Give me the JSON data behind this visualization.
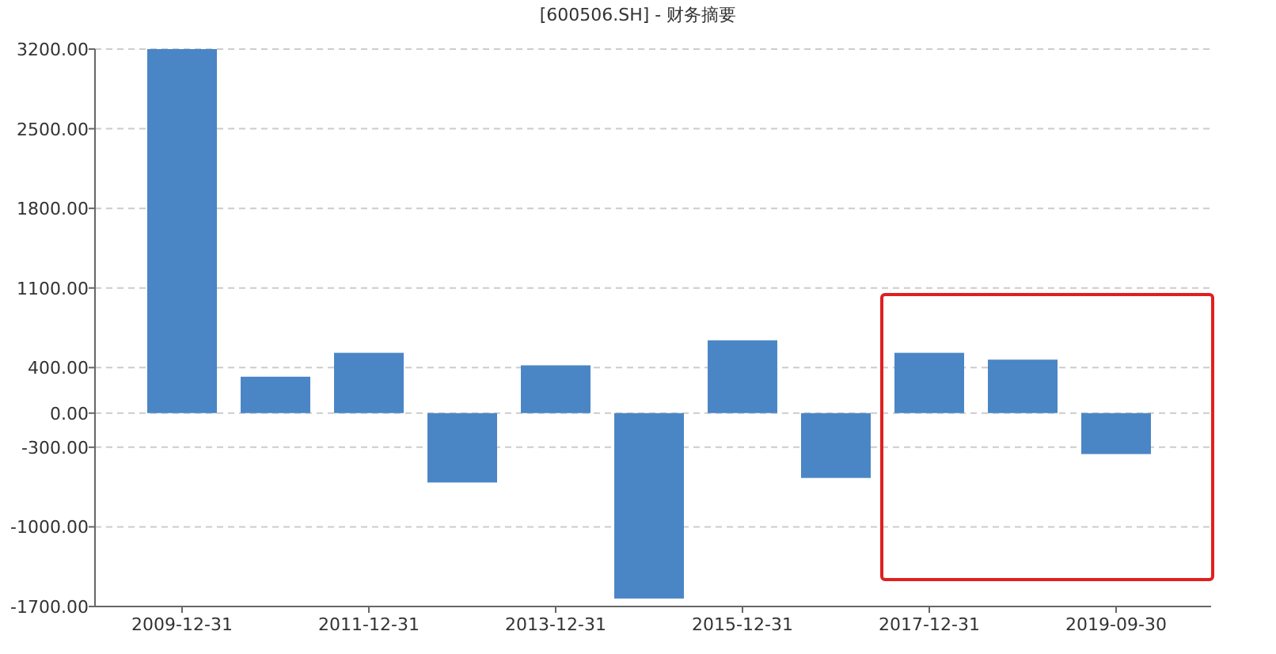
{
  "chart_data": {
    "type": "bar",
    "title": "[600506.SH] - 财务摘要",
    "categories": [
      "2009-12-31",
      null,
      "2011-12-31",
      null,
      "2013-12-31",
      null,
      "2015-12-31",
      null,
      "2017-12-31",
      null,
      "2019-09-30"
    ],
    "values": [
      3200,
      320,
      530,
      -610,
      420,
      -1630,
      640,
      -570,
      530,
      470,
      -360
    ],
    "color": "#4a86c5",
    "ylim": [
      -1700,
      3200
    ],
    "yticks": [
      {
        "value": 3200,
        "label": "3200.00"
      },
      {
        "value": 2500,
        "label": "2500.00"
      },
      {
        "value": 1800,
        "label": "1800.00"
      },
      {
        "value": 1100,
        "label": "1100.00"
      },
      {
        "value": 400,
        "label": "400.00"
      },
      {
        "value": 0,
        "label": "0.00"
      },
      {
        "value": -300,
        "label": "-300.00"
      },
      {
        "value": -1000,
        "label": "-1000.00"
      },
      {
        "value": -1700,
        "label": "-1700.00"
      }
    ],
    "grid": "y"
  }
}
